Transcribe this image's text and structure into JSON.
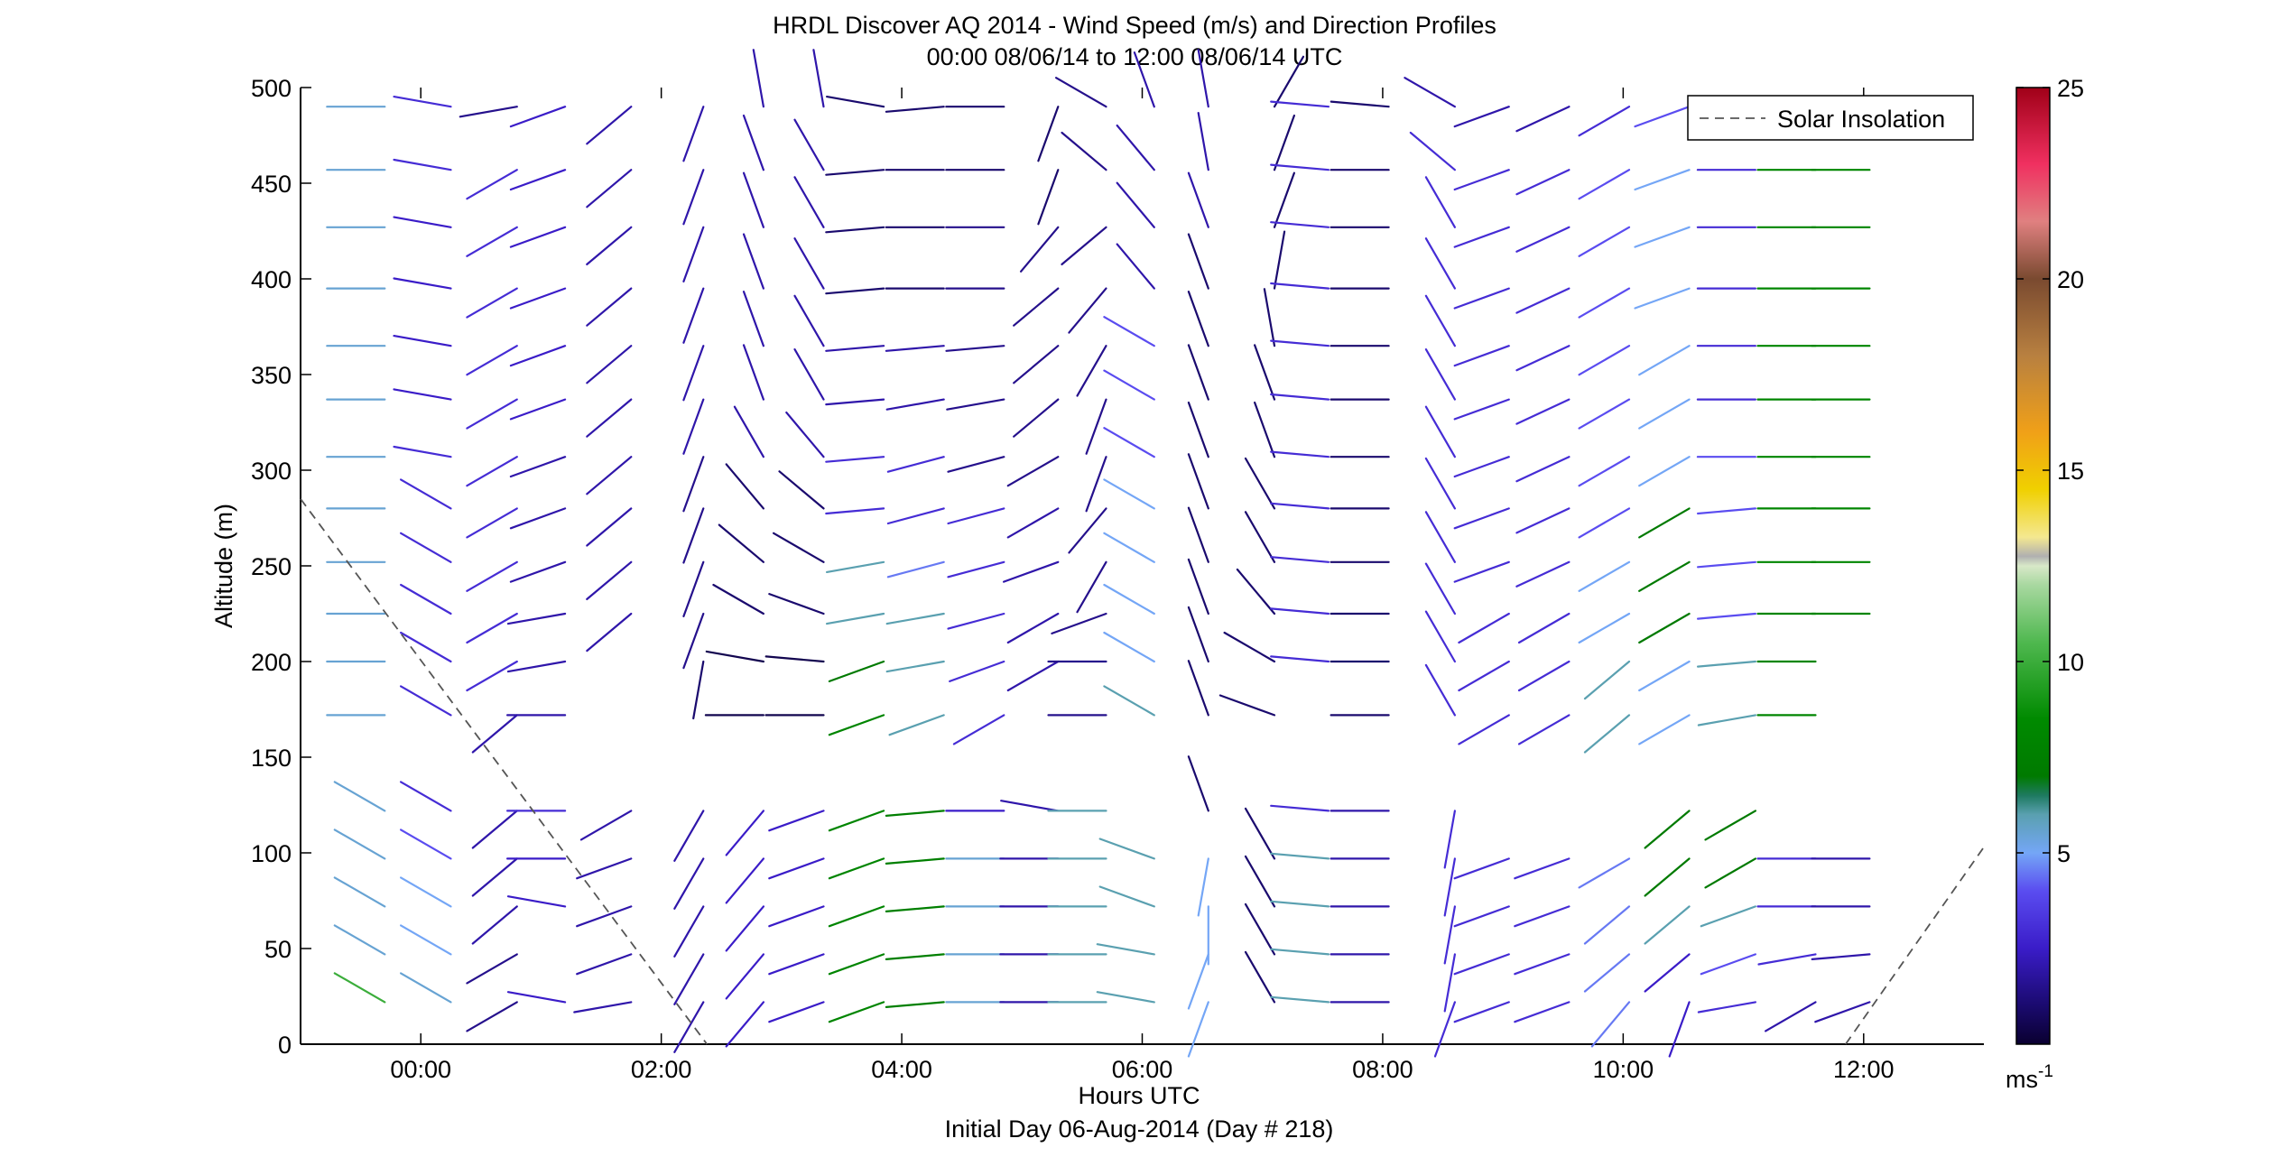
{
  "chart_data": {
    "type": "wind-barb-profile",
    "title_lines": [
      "HRDL Discover AQ 2014 - Wind Speed (m/s) and Direction Profiles",
      "00:00 08/06/14 to 12:00 08/06/14  UTC"
    ],
    "xlabel": "Hours UTC",
    "xlabel_sub": "Initial Day 06-Aug-2014 (Day # 218)",
    "ylabel": "Altitude (m)",
    "xlim": [
      -1.0,
      13.0
    ],
    "ylim": [
      0,
      500
    ],
    "x_ticks": [
      0,
      2,
      4,
      6,
      8,
      10,
      12
    ],
    "x_tick_labels": [
      "00:00",
      "02:00",
      "04:00",
      "06:00",
      "08:00",
      "10:00",
      "12:00"
    ],
    "y_ticks": [
      0,
      50,
      100,
      150,
      200,
      250,
      300,
      350,
      400,
      450,
      500
    ],
    "y_tick_labels": [
      "0",
      "50",
      "100",
      "150",
      "200",
      "250",
      "300",
      "350",
      "400",
      "450",
      "500"
    ],
    "colorbar": {
      "range": [
        0,
        25
      ],
      "ticks": [
        5,
        10,
        15,
        20,
        25
      ],
      "tick_labels": [
        "5",
        "10",
        "15",
        "20",
        "25"
      ],
      "unit_label": "ms",
      "unit_exponent": "-1"
    },
    "legend": {
      "position": "top-right",
      "entries": [
        {
          "label": "Solar Insolation",
          "style": "dashed",
          "color": "#555555"
        }
      ]
    },
    "solar_insolation": [
      {
        "x": [
          -1.0,
          2.38
        ],
        "y": [
          285,
          0
        ]
      },
      {
        "x": [
          11.85,
          13.0
        ],
        "y": [
          0,
          103
        ]
      }
    ],
    "profile_times_hours": [
      -0.3,
      0.25,
      0.8,
      1.2,
      1.75,
      2.35,
      2.85,
      3.35,
      3.85,
      4.35,
      4.85,
      5.3,
      5.7,
      6.1,
      6.55,
      7.1,
      7.55,
      8.05,
      8.6,
      9.05,
      9.55,
      10.05,
      10.55,
      11.1,
      11.6,
      12.05
    ],
    "profile_altitudes_m": [
      22,
      47,
      72,
      97,
      122,
      172,
      200,
      225,
      252,
      280,
      307,
      337,
      365,
      395,
      427,
      457,
      490
    ],
    "speed_profiles_ms": [
      [
        10,
        5.5,
        5.5,
        5.5,
        5.5,
        5.5,
        5.5,
        5.5,
        5.5,
        5.5,
        5.5,
        5.5,
        5.5,
        5.5,
        5.5,
        5.5,
        5.5
      ],
      [
        5.5,
        5,
        5,
        4,
        3,
        3,
        3,
        3,
        3,
        3,
        3,
        2.5,
        2.5,
        2.5,
        2.5,
        3,
        3
      ],
      [
        1.5,
        1.5,
        2,
        2,
        2,
        2,
        3,
        3,
        3,
        3,
        3,
        3,
        3,
        3,
        3,
        3,
        1.5
      ],
      [
        2.5,
        2.5,
        2.5,
        2.5,
        3,
        2,
        2,
        2,
        2,
        2,
        2,
        2.5,
        2.5,
        2.5,
        2.5,
        2.5,
        2.5
      ],
      [
        2,
        2,
        2,
        2,
        2,
        2,
        2,
        2,
        2,
        2,
        2,
        2,
        2,
        2,
        2,
        2,
        2
      ],
      [
        2,
        2,
        2,
        2,
        2,
        1,
        1,
        1.5,
        1.5,
        1.5,
        1.5,
        2,
        2,
        2,
        2,
        2,
        2
      ],
      [
        2.5,
        2.5,
        2.5,
        2.5,
        2.5,
        0.5,
        0.5,
        1,
        1,
        1,
        2,
        2,
        2,
        2,
        2,
        2,
        2
      ],
      [
        2.5,
        2.5,
        2.5,
        2.5,
        2.5,
        0.5,
        0.5,
        1,
        1,
        1,
        2,
        2,
        2,
        2,
        2,
        2,
        2
      ],
      [
        8,
        8,
        8,
        8,
        8,
        8,
        7,
        6,
        6,
        3,
        3,
        2,
        2,
        1,
        1,
        1,
        1
      ],
      [
        7.5,
        7.5,
        7.5,
        7.5,
        7.5,
        6,
        6,
        6,
        4.5,
        3,
        3,
        2,
        2,
        1,
        1,
        1,
        1
      ],
      [
        5.5,
        5.5,
        5.5,
        5.5,
        2.5,
        3,
        3,
        3,
        3,
        3,
        1.5,
        1.5,
        1.5,
        1.5,
        1.5,
        1,
        1
      ],
      [
        2,
        2,
        2,
        2,
        2,
        2,
        2,
        2,
        2,
        2,
        1.5,
        1.5,
        1.5,
        1.5,
        1.5,
        1,
        1
      ],
      [
        6,
        6,
        6,
        6,
        6,
        1.5,
        1.5,
        1.5,
        1.5,
        1.5,
        1.5,
        1.5,
        1.5,
        1.5,
        1.5,
        1.5,
        1.5
      ],
      [
        6,
        6,
        6,
        6,
        6,
        6,
        5,
        5,
        5,
        5,
        4,
        4,
        4,
        2,
        2,
        2,
        2
      ],
      [
        5,
        5,
        5,
        5,
        1,
        1,
        1,
        1,
        1,
        1,
        1,
        1,
        1,
        1,
        2,
        2,
        2
      ],
      [
        1,
        1,
        1,
        1,
        1,
        1,
        1,
        1,
        1,
        1,
        1,
        1,
        1,
        1,
        1,
        1,
        1
      ],
      [
        6,
        6,
        6,
        6,
        3,
        3,
        3,
        3,
        3,
        3,
        3,
        3,
        3,
        3,
        3,
        3,
        3
      ],
      [
        2,
        2,
        2,
        2,
        2,
        1,
        1,
        1,
        1,
        1,
        1,
        1,
        1,
        1,
        1,
        1,
        1
      ],
      [
        3,
        3,
        3,
        3,
        3,
        3,
        3,
        3,
        3,
        3,
        3,
        3,
        3,
        3,
        3,
        3,
        2
      ],
      [
        3,
        3,
        3,
        3,
        3,
        3,
        3,
        3,
        3,
        3,
        3,
        3,
        3,
        3,
        3,
        3,
        2
      ],
      [
        3,
        3,
        3,
        3,
        3,
        3,
        3,
        3,
        3,
        3,
        3,
        3,
        3,
        3,
        3,
        3,
        2
      ],
      [
        4.5,
        4.5,
        4.5,
        4.5,
        4.5,
        6,
        6,
        5,
        5,
        4,
        4,
        4,
        4,
        4,
        4,
        4,
        3
      ],
      [
        2.5,
        2.5,
        6,
        7,
        7,
        5,
        5,
        7,
        7,
        7,
        5,
        5,
        5,
        5,
        5,
        5,
        4
      ],
      [
        3,
        4,
        6,
        7,
        7,
        6,
        6,
        4,
        4,
        4,
        4,
        3,
        3,
        3,
        3,
        3,
        4
      ],
      [
        2,
        3,
        3,
        3,
        3,
        8,
        8,
        8,
        8,
        8,
        8,
        8,
        8,
        8,
        8,
        8,
        8
      ],
      [
        2,
        2,
        2,
        2,
        2,
        8,
        8,
        8,
        8,
        8,
        8,
        8,
        8,
        8,
        8,
        8,
        8
      ]
    ],
    "direction_profiles_deg": [
      [
        300,
        300,
        300,
        300,
        300,
        270,
        270,
        270,
        270,
        270,
        270,
        270,
        270,
        270,
        270,
        270,
        270
      ],
      [
        300,
        300,
        300,
        300,
        300,
        300,
        300,
        300,
        300,
        300,
        280,
        280,
        280,
        280,
        280,
        280,
        280
      ],
      [
        240,
        240,
        230,
        230,
        230,
        230,
        240,
        240,
        240,
        240,
        240,
        240,
        240,
        240,
        240,
        240,
        260
      ],
      [
        280,
        270,
        280,
        270,
        270,
        270,
        260,
        260,
        250,
        250,
        250,
        250,
        250,
        250,
        250,
        250,
        250
      ],
      [
        260,
        250,
        250,
        250,
        240,
        240,
        230,
        230,
        230,
        230,
        230,
        230,
        230,
        230,
        230,
        230,
        230
      ],
      [
        210,
        210,
        210,
        210,
        210,
        190,
        190,
        200,
        200,
        200,
        200,
        200,
        200,
        200,
        200,
        200,
        200
      ],
      [
        220,
        220,
        220,
        220,
        220,
        270,
        280,
        300,
        310,
        320,
        330,
        340,
        340,
        340,
        340,
        340,
        350
      ],
      [
        250,
        250,
        250,
        250,
        250,
        270,
        275,
        290,
        300,
        310,
        320,
        330,
        330,
        330,
        330,
        330,
        350
      ],
      [
        250,
        250,
        250,
        250,
        250,
        250,
        250,
        260,
        260,
        265,
        265,
        265,
        265,
        265,
        265,
        265,
        280
      ],
      [
        265,
        265,
        265,
        265,
        265,
        250,
        260,
        260,
        255,
        255,
        255,
        260,
        265,
        270,
        270,
        270,
        265
      ],
      [
        270,
        270,
        270,
        270,
        270,
        240,
        250,
        255,
        255,
        255,
        255,
        260,
        265,
        270,
        270,
        270,
        270
      ],
      [
        270,
        270,
        270,
        270,
        280,
        300,
        240,
        240,
        250,
        240,
        240,
        230,
        230,
        230,
        220,
        200,
        200
      ],
      [
        270,
        270,
        270,
        270,
        270,
        270,
        270,
        250,
        210,
        220,
        200,
        200,
        210,
        220,
        230,
        310,
        300
      ],
      [
        280,
        280,
        290,
        290,
        290,
        300,
        300,
        300,
        300,
        300,
        300,
        300,
        300,
        320,
        320,
        320,
        340
      ],
      [
        200,
        200,
        180,
        190,
        340,
        340,
        340,
        340,
        340,
        340,
        340,
        340,
        340,
        340,
        340,
        350,
        350
      ],
      [
        330,
        330,
        330,
        330,
        290,
        290,
        300,
        320,
        330,
        330,
        340,
        340,
        350,
        10,
        20,
        20,
        30
      ],
      [
        275,
        275,
        275,
        275,
        275,
        275,
        275,
        275,
        275,
        275,
        275,
        275,
        275,
        275,
        275,
        275,
        275
      ],
      [
        270,
        270,
        270,
        270,
        270,
        270,
        270,
        270,
        270,
        270,
        270,
        270,
        270,
        270,
        270,
        270,
        275
      ],
      [
        200,
        190,
        190,
        190,
        190,
        330,
        330,
        330,
        330,
        330,
        330,
        330,
        330,
        330,
        330,
        310,
        300
      ],
      [
        250,
        250,
        250,
        250,
        250,
        240,
        240,
        240,
        250,
        250,
        250,
        250,
        250,
        250,
        250,
        250,
        250
      ],
      [
        250,
        250,
        250,
        250,
        250,
        240,
        240,
        240,
        245,
        245,
        245,
        245,
        245,
        245,
        245,
        245,
        245
      ],
      [
        220,
        230,
        230,
        240,
        240,
        230,
        230,
        240,
        240,
        240,
        240,
        240,
        240,
        240,
        240,
        240,
        240
      ],
      [
        200,
        230,
        230,
        230,
        230,
        240,
        240,
        240,
        240,
        240,
        240,
        240,
        240,
        250,
        250,
        250,
        250
      ],
      [
        260,
        250,
        250,
        240,
        240,
        260,
        265,
        265,
        265,
        265,
        270,
        270,
        270,
        270,
        270,
        270,
        270
      ],
      [
        240,
        260,
        270,
        270,
        270,
        270,
        270,
        270,
        270,
        270,
        270,
        270,
        270,
        270,
        270,
        270,
        270
      ],
      [
        250,
        265,
        270,
        270,
        270,
        270,
        270,
        270,
        270,
        270,
        270,
        270,
        270,
        270,
        270,
        270,
        270
      ]
    ],
    "missing_cells": [
      [
        3,
        1
      ],
      [
        4,
        5
      ],
      [
        4,
        6
      ],
      [
        5,
        5
      ],
      [
        11,
        5
      ],
      [
        13,
        4
      ],
      [
        15,
        4
      ],
      [
        16,
        5
      ],
      [
        19,
        4
      ],
      [
        20,
        4
      ],
      [
        21,
        4
      ],
      [
        24,
        4
      ],
      [
        25,
        4
      ],
      [
        25,
        5
      ],
      [
        25,
        6
      ]
    ]
  }
}
